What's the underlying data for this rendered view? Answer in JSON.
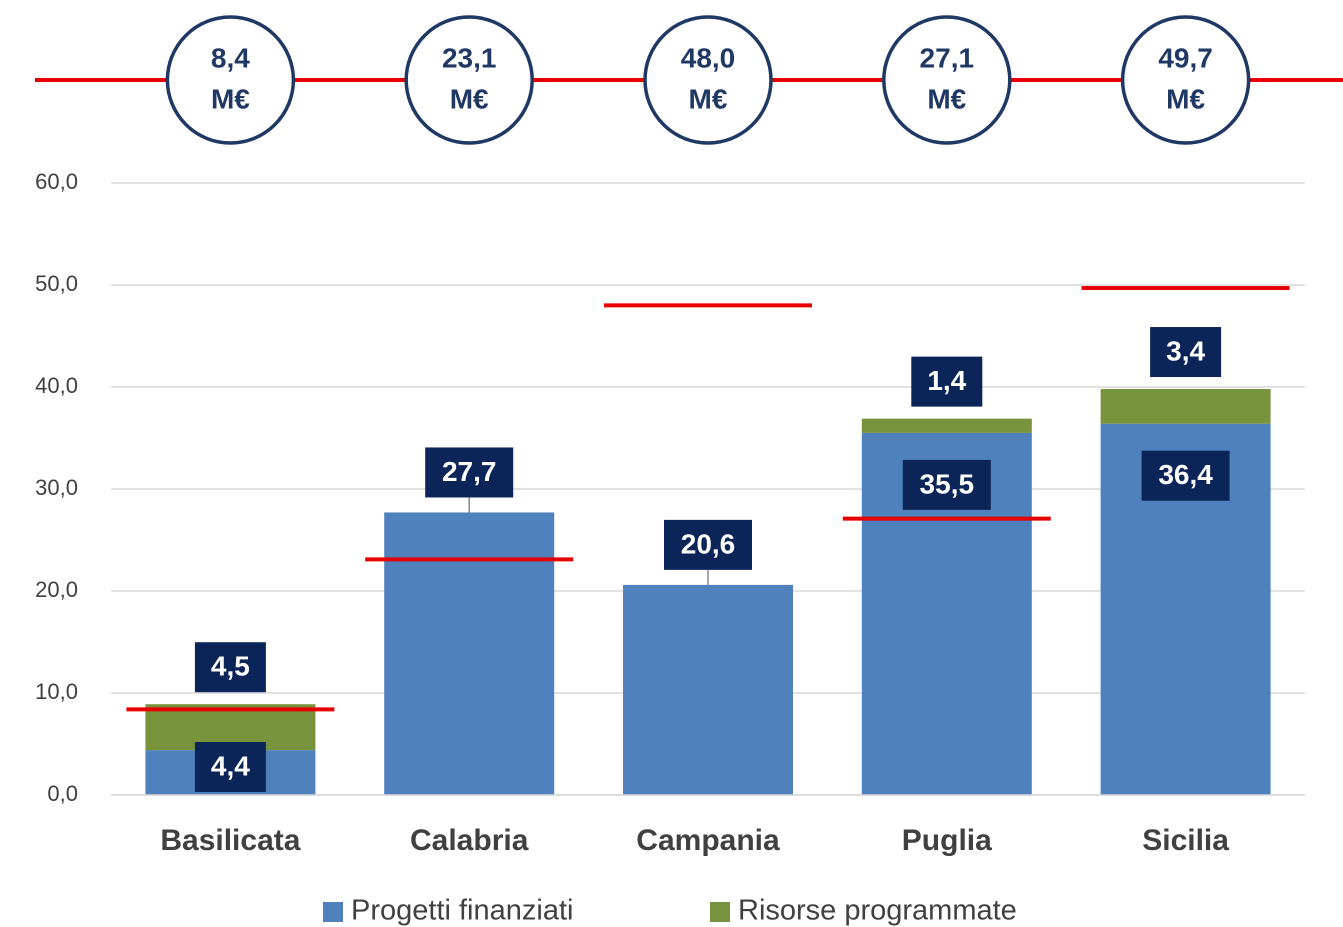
{
  "chart_data": {
    "type": "bar",
    "stacked": true,
    "categories": [
      "Basilicata",
      "Calabria",
      "Campania",
      "Puglia",
      "Sicilia"
    ],
    "series": [
      {
        "name": "Progetti finanziati",
        "color": "#4f81bd",
        "values": [
          4.4,
          27.7,
          20.6,
          35.5,
          36.4
        ],
        "value_labels": [
          "4,4",
          "27,7",
          "20,6",
          "35,5",
          "36,4"
        ]
      },
      {
        "name": "Risorse programmate",
        "color": "#77933c",
        "values": [
          4.5,
          null,
          null,
          1.4,
          3.4
        ],
        "value_labels": [
          "4,5",
          null,
          null,
          "1,4",
          "3,4"
        ]
      }
    ],
    "targets": {
      "color": "#e60000",
      "values": [
        8.4,
        23.1,
        48.0,
        27.1,
        49.7
      ],
      "value_labels": [
        "8,4",
        "23,1",
        "48,0",
        "27,1",
        "49,7"
      ],
      "unit": "M€"
    },
    "ylim": [
      0,
      60
    ],
    "yticks": [
      {
        "value": 0,
        "label": "0,0"
      },
      {
        "value": 10,
        "label": "10,0"
      },
      {
        "value": 20,
        "label": "20,0"
      },
      {
        "value": 30,
        "label": "30,0"
      },
      {
        "value": 40,
        "label": "40,0"
      },
      {
        "value": 50,
        "label": "50,0"
      },
      {
        "value": 60,
        "label": "60,0"
      }
    ],
    "grid": true,
    "legend": "bottom"
  }
}
